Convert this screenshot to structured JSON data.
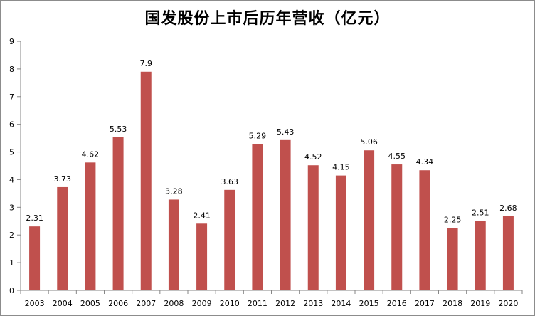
{
  "chart_data": {
    "type": "bar",
    "title": "国发股份上市后历年营收（亿元）",
    "xlabel": "",
    "ylabel": "",
    "categories": [
      "2003",
      "2004",
      "2005",
      "2006",
      "2007",
      "2008",
      "2009",
      "2010",
      "2011",
      "2012",
      "2013",
      "2014",
      "2015",
      "2016",
      "2017",
      "2018",
      "2019",
      "2020"
    ],
    "values": [
      2.31,
      3.73,
      4.62,
      5.53,
      7.9,
      3.28,
      2.41,
      3.63,
      5.29,
      5.43,
      4.52,
      4.15,
      5.06,
      4.55,
      4.34,
      2.25,
      2.51,
      2.68
    ],
    "value_labels": [
      "2.31",
      "3.73",
      "4.62",
      "5.53",
      "7.9",
      "3.28",
      "2.41",
      "3.63",
      "5.29",
      "5.43",
      "4.52",
      "4.15",
      "5.06",
      "4.55",
      "4.34",
      "2.25",
      "2.51",
      "2.68"
    ],
    "ylim": [
      0,
      9
    ],
    "yticks": [
      "0",
      "1",
      "2",
      "3",
      "4",
      "5",
      "6",
      "7",
      "8",
      "9"
    ],
    "grid": false,
    "legend": "none",
    "bar_color": "#c0504d",
    "axis_color": "#868686"
  }
}
